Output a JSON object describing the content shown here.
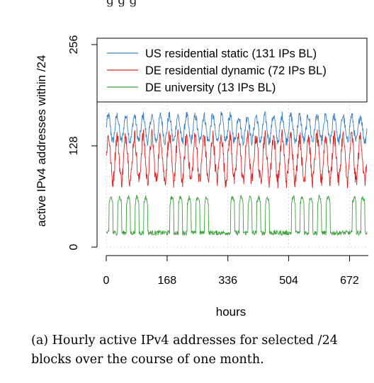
{
  "top_fragment": "g              g g",
  "caption": "(a) Hourly active IPv4 addresses for selected /24 blocks over the course of one month.",
  "chart_data": {
    "type": "line",
    "xlabel": "hours",
    "ylabel": "active IPv4 addresses within /24",
    "xticks": [
      0,
      168,
      336,
      504,
      672
    ],
    "yticks": [
      0,
      128,
      256
    ],
    "xlim": [
      0,
      720
    ],
    "ylim": [
      0,
      256
    ],
    "grid": true,
    "legend_position": "top",
    "series": [
      {
        "name": "US residential static (131 IPs BL)",
        "color": "#3a7fc1",
        "pattern": "diurnal",
        "base": 150,
        "amplitude": 16,
        "noise": 6
      },
      {
        "name": "DE residential dynamic (72 IPs BL)",
        "color": "#d62728",
        "pattern": "diurnal",
        "base": 112,
        "amplitude": 28,
        "noise": 10
      },
      {
        "name": "DE university (13 IPs BL)",
        "color": "#3ca03c",
        "pattern": "weekday-blocks",
        "low": 18,
        "high": 55,
        "noise": 3
      }
    ]
  }
}
